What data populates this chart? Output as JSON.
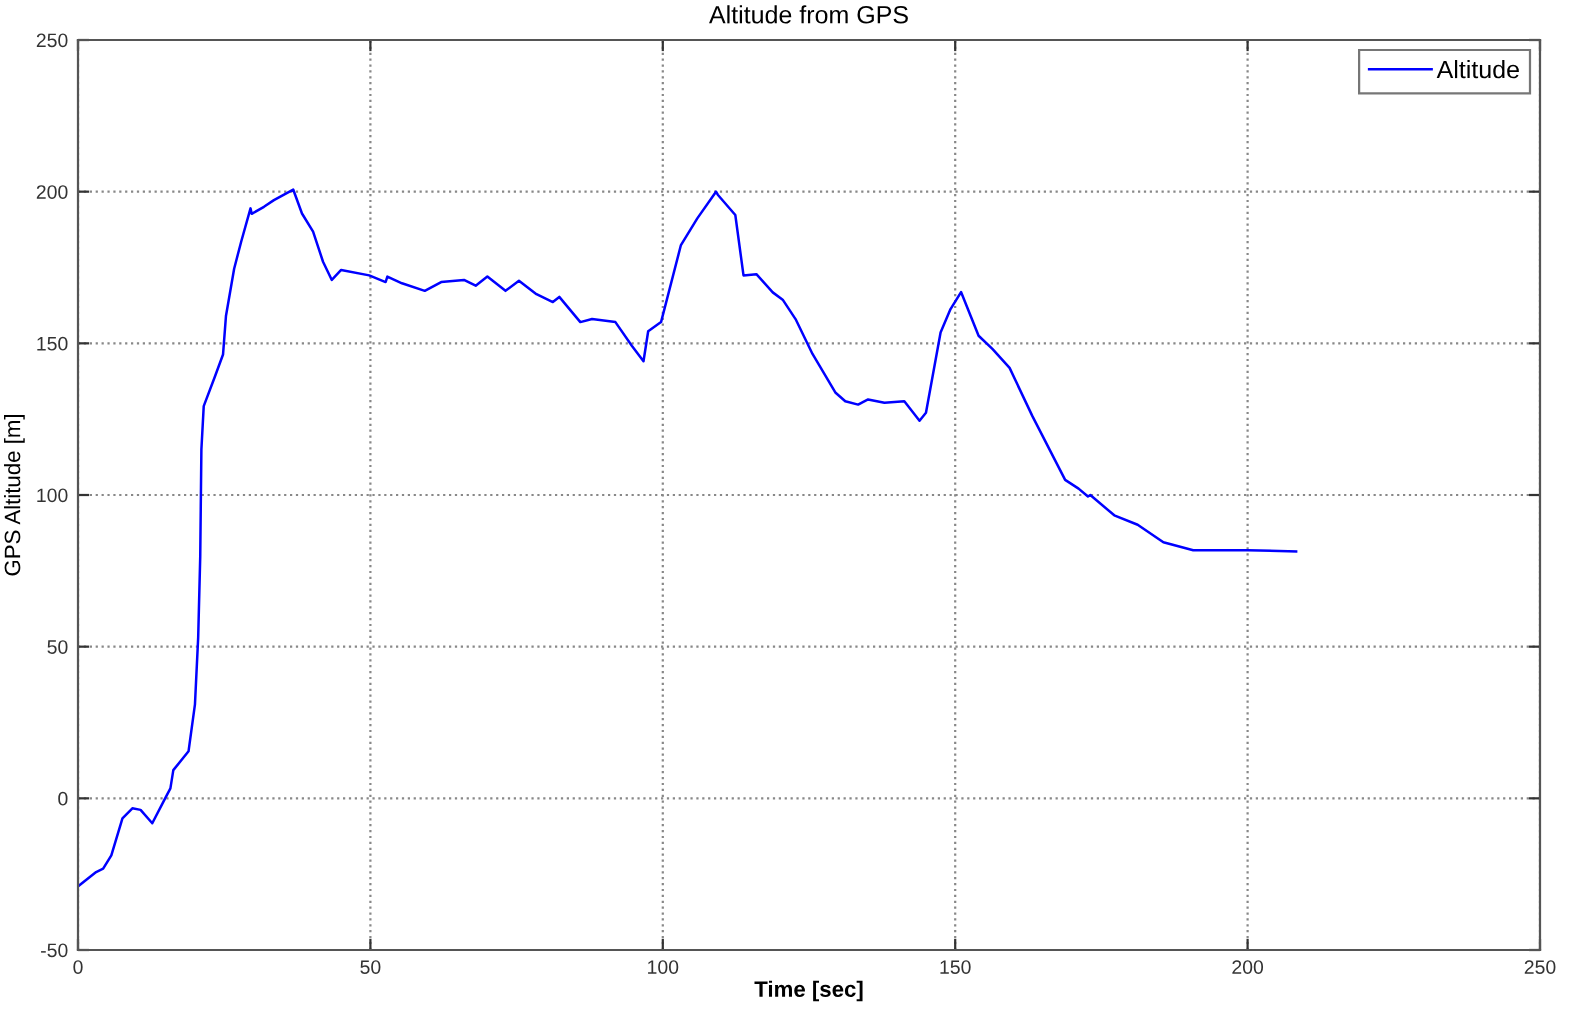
{
  "chart_data": {
    "type": "line",
    "title": "Altitude from GPS",
    "xlabel": "Time [sec]",
    "ylabel": "GPS Altitude [m]",
    "xlim": [
      0,
      250
    ],
    "xticks": [
      0,
      50,
      100,
      150,
      200,
      250
    ],
    "ylim": [
      -50,
      250
    ],
    "yticks": [
      -50,
      0,
      50,
      100,
      150,
      200,
      250
    ],
    "grid": true,
    "legend": "top right",
    "line_style": "solid",
    "marker": "none",
    "series": [
      {
        "name": "Altitude",
        "color": "#0000ff",
        "x": [
          0,
          3.1,
          4.3,
          5.7,
          7.6,
          9.3,
          10.7,
          12.7,
          14.9,
          15.8,
          16.3,
          18.9,
          20,
          20.55,
          20.9,
          21.1,
          21.5,
          23.4,
          24.8,
          25.3,
          26.7,
          27.9,
          29.5,
          29.7,
          31.8,
          33.5,
          36.8,
          38.3,
          40.2,
          41.9,
          43.4,
          45,
          49.8,
          52.6,
          52.9,
          55.4,
          59.3,
          62.1,
          66,
          68,
          70,
          73.1,
          75.4,
          78.4,
          81.2,
          82.3,
          85.9,
          87.9,
          91.9,
          94.7,
          96.7,
          97.5,
          99.7,
          103.1,
          105.9,
          109.1,
          109.4,
          112.4,
          113.8,
          116,
          118.8,
          120.5,
          122.7,
          125.6,
          129.5,
          131.2,
          133.4,
          135.1,
          137.9,
          141.3,
          143.9,
          145,
          147.5,
          149.2,
          151,
          154,
          156.4,
          159.3,
          163.2,
          168.8,
          171.1,
          172.7,
          173.1,
          177.2,
          181.2,
          185.6,
          190.7,
          200,
          208.3
        ],
        "values": [
          -29,
          -24.3,
          -23.2,
          -18.8,
          -6.6,
          -3.3,
          -3.8,
          -8.2,
          0,
          3.3,
          9.3,
          15.5,
          31,
          53,
          79.6,
          115,
          129.3,
          139,
          146.3,
          159,
          174.6,
          183.5,
          194.5,
          192.7,
          195,
          197.2,
          200.7,
          192.8,
          186.8,
          176.9,
          170.9,
          174.2,
          172.4,
          170.2,
          172,
          169.8,
          167.3,
          170.2,
          170.9,
          169,
          172,
          167.3,
          170.6,
          166.2,
          163.6,
          165.3,
          157,
          158,
          157,
          149.2,
          144.1,
          154,
          157,
          182.4,
          191.2,
          200,
          199,
          192.3,
          172.4,
          172.8,
          166.8,
          164.4,
          158,
          146.5,
          133.8,
          130.9,
          129.8,
          131.5,
          130.4,
          130.9,
          124.5,
          127.1,
          153.6,
          161.3,
          166.9,
          152.5,
          148.1,
          141.9,
          126,
          105,
          102.1,
          99.5,
          100,
          93.3,
          90.2,
          84.4,
          81.8,
          81.8,
          81.4
        ]
      }
    ]
  }
}
